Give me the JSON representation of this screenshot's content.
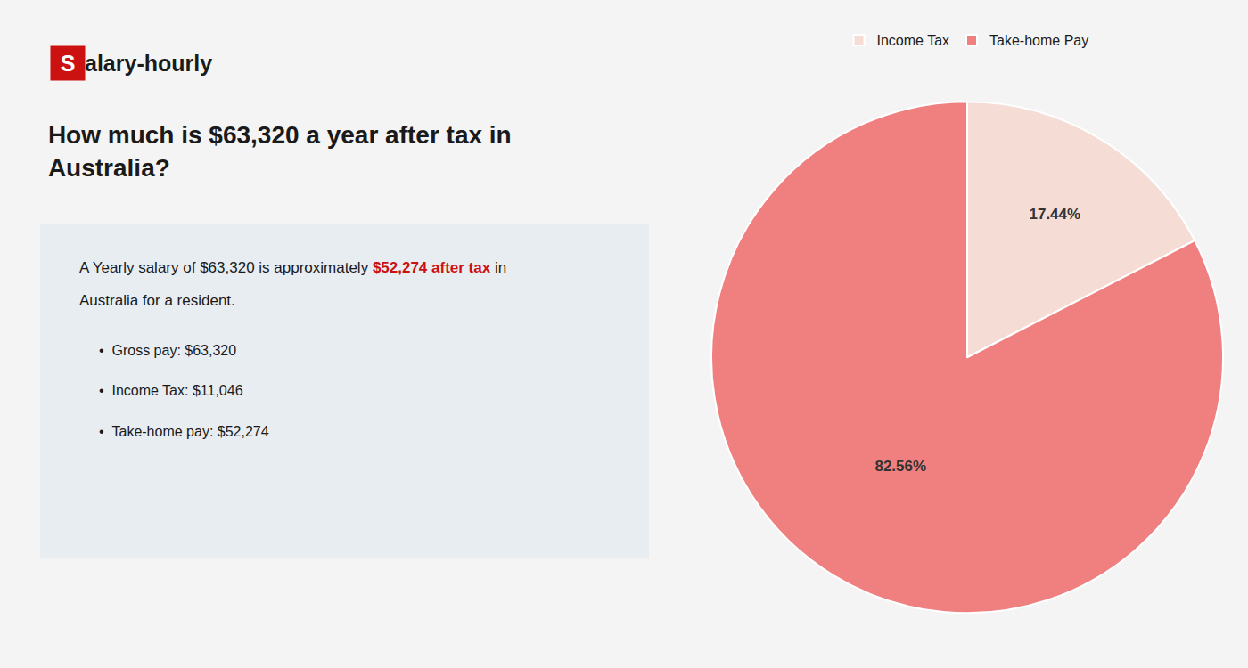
{
  "chart_data": {
    "type": "pie",
    "title": "How much is $63,320 a year after tax in\nAustralia?",
    "categories": [
      "Income Tax",
      "Take-home Pay"
    ],
    "values": [
      17.44,
      82.56
    ],
    "value_labels": [
      "17.44%",
      "82.56%"
    ],
    "data_labels": true,
    "colors": [
      "#f5ddd5",
      "#f08080"
    ],
    "legend": "top",
    "annotations": [
      [
        {
          "text": "S",
          "color": "#cc1111"
        },
        {
          "text": "alary-hourly"
        }
      ],
      [
        {
          "text": "A Yearly salary of $63,320 is approximately "
        },
        {
          "text": "$52,274 after tax",
          "color": "#cc1111"
        },
        {
          "text": " in"
        }
      ],
      [
        {
          "text": "Australia for a resident."
        }
      ],
      [
        {
          "text": "•  Gross pay: $63,320"
        }
      ],
      [
        {
          "text": "•  Income Tax: $11,046"
        }
      ],
      [
        {
          "text": "•  Take-home pay: $52,274"
        }
      ]
    ]
  }
}
